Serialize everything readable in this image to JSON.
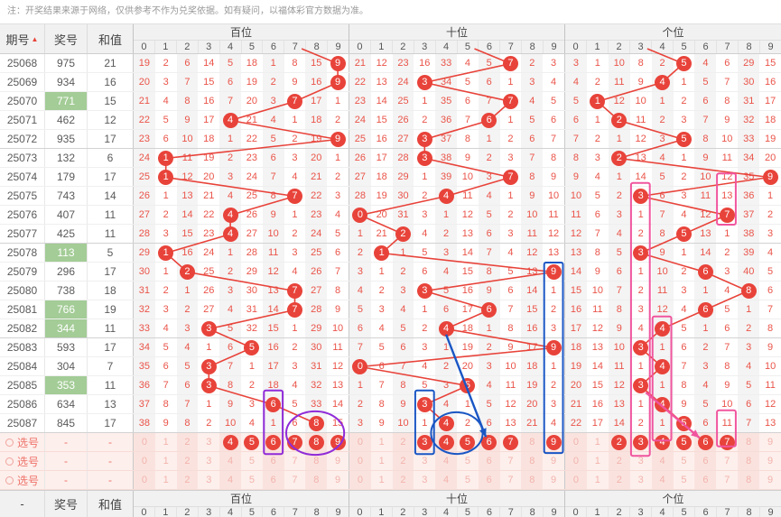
{
  "note": "注：开奖结果来源于网络，仅供参考不作为兑奖依据。如有疑问，以福体彩官方数据为准。",
  "header": {
    "issue_label": "期号",
    "prize_label": "奖号",
    "sum_label": "和值",
    "sort_icon": "▲",
    "sections": [
      "百位",
      "十位",
      "个位"
    ],
    "digits": [
      "0",
      "1",
      "2",
      "3",
      "4",
      "5",
      "6",
      "7",
      "8",
      "9"
    ]
  },
  "footer": {
    "issue_label": "-",
    "prize_label": "奖号",
    "sum_label": "和值"
  },
  "rows": [
    {
      "issue": "25068",
      "prize": "975",
      "sum": "21",
      "green": false,
      "miss": [
        [
          19,
          2,
          6,
          14,
          5,
          18,
          1,
          8,
          15,
          9
        ],
        [
          21,
          12,
          23,
          16,
          33,
          4,
          5,
          7,
          2,
          3
        ],
        [
          3,
          1,
          10,
          8,
          2,
          5,
          4,
          6,
          29,
          15
        ]
      ]
    },
    {
      "issue": "25069",
      "prize": "934",
      "sum": "16",
      "green": false,
      "miss": [
        [
          20,
          3,
          7,
          15,
          6,
          19,
          2,
          9,
          16,
          9
        ],
        [
          22,
          13,
          24,
          3,
          34,
          5,
          6,
          1,
          3,
          4
        ],
        [
          4,
          2,
          11,
          9,
          4,
          1,
          5,
          7,
          30,
          16
        ]
      ]
    },
    {
      "issue": "25070",
      "prize": "771",
      "sum": "15",
      "green": true,
      "miss": [
        [
          21,
          4,
          8,
          16,
          7,
          20,
          3,
          7,
          17,
          1
        ],
        [
          23,
          14,
          25,
          1,
          35,
          6,
          7,
          7,
          4,
          5
        ],
        [
          5,
          1,
          12,
          10,
          1,
          2,
          6,
          8,
          31,
          17
        ]
      ]
    },
    {
      "issue": "25071",
      "prize": "462",
      "sum": "12",
      "green": false,
      "miss": [
        [
          22,
          5,
          9,
          17,
          4,
          21,
          4,
          1,
          18,
          2
        ],
        [
          24,
          15,
          26,
          2,
          36,
          7,
          6,
          1,
          5,
          6
        ],
        [
          6,
          1,
          2,
          11,
          2,
          3,
          7,
          9,
          32,
          18
        ]
      ]
    },
    {
      "issue": "25072",
      "prize": "935",
      "sum": "17",
      "green": false,
      "miss": [
        [
          23,
          6,
          10,
          18,
          1,
          22,
          5,
          2,
          19,
          9
        ],
        [
          25,
          16,
          27,
          3,
          37,
          8,
          1,
          2,
          6,
          7
        ],
        [
          7,
          2,
          1,
          12,
          3,
          5,
          8,
          10,
          33,
          19
        ]
      ]
    },
    {
      "issue": "25073",
      "prize": "132",
      "sum": "6",
      "green": false,
      "miss": [
        [
          24,
          1,
          11,
          19,
          2,
          23,
          6,
          3,
          20,
          1
        ],
        [
          26,
          17,
          28,
          3,
          38,
          9,
          2,
          3,
          7,
          8
        ],
        [
          8,
          3,
          2,
          13,
          4,
          1,
          9,
          11,
          34,
          20
        ]
      ]
    },
    {
      "issue": "25074",
      "prize": "179",
      "sum": "17",
      "green": false,
      "miss": [
        [
          25,
          1,
          12,
          20,
          3,
          24,
          7,
          4,
          21,
          2
        ],
        [
          27,
          18,
          29,
          1,
          39,
          10,
          3,
          7,
          8,
          9
        ],
        [
          9,
          4,
          1,
          14,
          5,
          2,
          10,
          12,
          35,
          9
        ]
      ]
    },
    {
      "issue": "25075",
      "prize": "743",
      "sum": "14",
      "green": false,
      "miss": [
        [
          26,
          1,
          13,
          21,
          4,
          25,
          8,
          7,
          22,
          3
        ],
        [
          28,
          19,
          30,
          2,
          4,
          11,
          4,
          1,
          9,
          10
        ],
        [
          10,
          5,
          2,
          3,
          6,
          3,
          11,
          13,
          36,
          1
        ]
      ]
    },
    {
      "issue": "25076",
      "prize": "407",
      "sum": "11",
      "green": false,
      "miss": [
        [
          27,
          2,
          14,
          22,
          4,
          26,
          9,
          1,
          23,
          4
        ],
        [
          0,
          20,
          31,
          3,
          1,
          12,
          5,
          2,
          10,
          11
        ],
        [
          11,
          6,
          3,
          1,
          7,
          4,
          12,
          7,
          37,
          2
        ]
      ]
    },
    {
      "issue": "25077",
      "prize": "425",
      "sum": "11",
      "green": false,
      "miss": [
        [
          28,
          3,
          15,
          23,
          4,
          27,
          10,
          2,
          24,
          5
        ],
        [
          1,
          21,
          2,
          4,
          2,
          13,
          6,
          3,
          11,
          12
        ],
        [
          12,
          7,
          4,
          2,
          8,
          5,
          13,
          1,
          38,
          3
        ]
      ]
    },
    {
      "issue": "25078",
      "prize": "113",
      "sum": "5",
      "green": true,
      "miss": [
        [
          29,
          1,
          16,
          24,
          1,
          28,
          11,
          3,
          25,
          6
        ],
        [
          2,
          1,
          1,
          5,
          3,
          14,
          7,
          4,
          12,
          13
        ],
        [
          13,
          8,
          5,
          3,
          9,
          1,
          14,
          2,
          39,
          4
        ]
      ]
    },
    {
      "issue": "25079",
      "prize": "296",
      "sum": "17",
      "green": false,
      "miss": [
        [
          30,
          1,
          2,
          25,
          2,
          29,
          12,
          4,
          26,
          7
        ],
        [
          3,
          1,
          2,
          6,
          4,
          15,
          8,
          5,
          13,
          9
        ],
        [
          14,
          9,
          6,
          1,
          10,
          2,
          6,
          3,
          40,
          5
        ]
      ]
    },
    {
      "issue": "25080",
      "prize": "738",
      "sum": "18",
      "green": false,
      "miss": [
        [
          31,
          2,
          1,
          26,
          3,
          30,
          13,
          7,
          27,
          8
        ],
        [
          4,
          2,
          3,
          3,
          5,
          16,
          9,
          6,
          14,
          1
        ],
        [
          15,
          10,
          7,
          2,
          11,
          3,
          1,
          4,
          8,
          6
        ]
      ]
    },
    {
      "issue": "25081",
      "prize": "766",
      "sum": "19",
      "green": true,
      "miss": [
        [
          32,
          3,
          2,
          27,
          4,
          31,
          14,
          7,
          28,
          9
        ],
        [
          5,
          3,
          4,
          1,
          6,
          17,
          6,
          7,
          15,
          2
        ],
        [
          16,
          11,
          8,
          3,
          12,
          4,
          6,
          5,
          1,
          7
        ]
      ]
    },
    {
      "issue": "25082",
      "prize": "344",
      "sum": "11",
      "green": true,
      "miss": [
        [
          33,
          4,
          3,
          3,
          5,
          32,
          15,
          1,
          29,
          10
        ],
        [
          6,
          4,
          5,
          2,
          4,
          18,
          1,
          8,
          16,
          3
        ],
        [
          17,
          12,
          9,
          4,
          4,
          5,
          1,
          6,
          2,
          8
        ]
      ]
    },
    {
      "issue": "25083",
      "prize": "593",
      "sum": "17",
      "green": false,
      "miss": [
        [
          34,
          5,
          4,
          1,
          6,
          5,
          16,
          2,
          30,
          11
        ],
        [
          7,
          5,
          6,
          3,
          1,
          19,
          2,
          9,
          17,
          9
        ],
        [
          18,
          13,
          10,
          3,
          1,
          6,
          2,
          7,
          3,
          9
        ]
      ]
    },
    {
      "issue": "25084",
      "prize": "304",
      "sum": "7",
      "green": false,
      "miss": [
        [
          35,
          6,
          5,
          3,
          7,
          1,
          17,
          3,
          31,
          12
        ],
        [
          0,
          6,
          7,
          4,
          2,
          20,
          3,
          10,
          18,
          1
        ],
        [
          19,
          14,
          11,
          1,
          4,
          7,
          3,
          8,
          4,
          10
        ]
      ]
    },
    {
      "issue": "25085",
      "prize": "353",
      "sum": "11",
      "green": true,
      "miss": [
        [
          36,
          7,
          6,
          3,
          8,
          2,
          18,
          4,
          32,
          13
        ],
        [
          1,
          7,
          8,
          5,
          3,
          5,
          4,
          11,
          19,
          2
        ],
        [
          20,
          15,
          12,
          3,
          1,
          8,
          4,
          9,
          5,
          11
        ]
      ]
    },
    {
      "issue": "25086",
      "prize": "634",
      "sum": "13",
      "green": false,
      "miss": [
        [
          37,
          8,
          7,
          1,
          9,
          3,
          6,
          5,
          33,
          14
        ],
        [
          2,
          8,
          9,
          3,
          4,
          1,
          5,
          12,
          20,
          3
        ],
        [
          21,
          16,
          13,
          1,
          4,
          9,
          5,
          10,
          6,
          12
        ]
      ]
    },
    {
      "issue": "25087",
      "prize": "845",
      "sum": "17",
      "green": false,
      "miss": [
        [
          38,
          9,
          8,
          2,
          10,
          4,
          1,
          6,
          8,
          15
        ],
        [
          3,
          9,
          10,
          1,
          4,
          2,
          6,
          13,
          21,
          4
        ],
        [
          22,
          17,
          14,
          2,
          1,
          5,
          6,
          11,
          7,
          13
        ]
      ]
    }
  ],
  "selection": {
    "label": "选号",
    "placeholder": "-",
    "rows": [
      {
        "selected": [
          [
            4,
            5,
            6,
            7,
            8,
            9
          ],
          [
            3,
            4,
            5,
            6,
            7,
            9
          ],
          [
            2,
            3,
            4,
            5,
            6,
            7
          ]
        ]
      },
      {
        "selected": [
          [],
          [],
          []
        ]
      },
      {
        "selected": [
          [],
          [],
          []
        ]
      }
    ]
  },
  "colors": {
    "red": "#e8433a",
    "green": "#a3cc96",
    "purple": "#8f2bd8",
    "blue": "#1a56c4",
    "pink": "#f0559e"
  },
  "annotations": [
    {
      "shape": "rect",
      "color": "purple",
      "sec": 0,
      "col1": 6,
      "col2": 6,
      "row1": 17.75,
      "row2": 20.1
    },
    {
      "shape": "ellipse",
      "color": "purple",
      "sec": 0,
      "colc": 8.45,
      "colr": 1.35,
      "rowc": 20.0,
      "rowr": 1.15
    },
    {
      "shape": "rect",
      "color": "blue",
      "sec": 1,
      "col1": 9,
      "col2": 9,
      "row1": 11.0,
      "row2": 20.05
    },
    {
      "shape": "rect",
      "color": "blue",
      "sec": 1,
      "col1": 3,
      "col2": 3,
      "row1": 17.75,
      "row2": 20.1
    },
    {
      "shape": "ellipse",
      "color": "blue",
      "sec": 1,
      "colc": 5.0,
      "colr": 1.2,
      "rowc": 20.0,
      "rowr": 1.1
    },
    {
      "shape": "arrow",
      "color": "blue",
      "sec": 1,
      "x1c": 4.5,
      "y1r": 14.8,
      "x2c": 6.35,
      "y2r": 20.2
    },
    {
      "shape": "rect",
      "color": "pink",
      "sec": 2,
      "col1": 3,
      "col2": 3,
      "row1": 6.8,
      "row2": 20.2
    },
    {
      "shape": "rect",
      "color": "pink",
      "sec": 2,
      "col1": 7,
      "col2": 7,
      "row1": 6.3,
      "row2": 8.0
    },
    {
      "shape": "rect",
      "color": "pink",
      "sec": 2,
      "col1": 4,
      "col2": 4,
      "row1": 13.85,
      "row2": 19.4
    },
    {
      "shape": "rect",
      "color": "pink",
      "sec": 2,
      "col1": 7,
      "col2": 7,
      "row1": 18.8,
      "row2": 19.7
    },
    {
      "shape": "arrow",
      "color": "pink",
      "sec": 2,
      "x1c": 3.75,
      "y1r": 17.85,
      "x2c": 6.25,
      "y2r": 20.25
    }
  ]
}
